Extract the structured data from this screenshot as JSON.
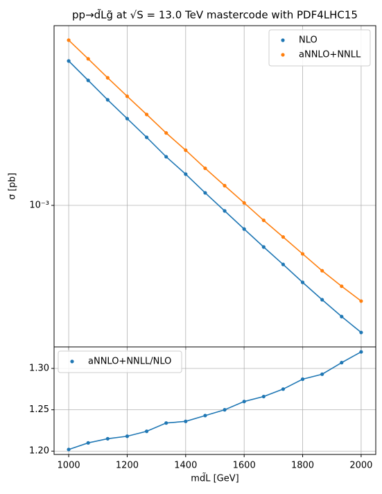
{
  "chart_data": [
    {
      "type": "line",
      "title": "pp→d̃Lg̃ at √S = 13.0 TeV mastercode with PDF4LHC15",
      "ylabel": "σ [pb]",
      "x": [
        1000,
        1066.67,
        1133.33,
        1200,
        1266.67,
        1333.33,
        1400,
        1466.67,
        1533.33,
        1600,
        1666.67,
        1733.33,
        1800,
        1866.67,
        1933.33,
        2000
      ],
      "series": [
        {
          "name": "NLO",
          "color": "#1f77b4",
          "values": [
            0.003586,
            0.00302,
            0.002543,
            0.002154,
            0.001825,
            0.001537,
            0.001318,
            0.001117,
            0.000952,
            0.000811,
            0.000692,
            0.000593,
            0.000506,
            0.000434,
            0.000374,
            0.000325
          ]
        },
        {
          "name": "aNNLO+NNLL",
          "color": "#ff7f0e",
          "values": [
            0.00431,
            0.003654,
            0.00309,
            0.002624,
            0.002234,
            0.001897,
            0.001629,
            0.001388,
            0.00119,
            0.001022,
            0.000876,
            0.000756,
            0.000651,
            0.000561,
            0.000489,
            0.000429
          ]
        }
      ],
      "xlim": [
        950,
        2050
      ],
      "xticks": [
        1000,
        1200,
        1400,
        1600,
        1800,
        2000
      ],
      "ylim": [
        0.000286,
        0.0049
      ],
      "yticks": [
        {
          "value": 0.001,
          "label": "10⁻³"
        }
      ],
      "log_y": true,
      "grid": true,
      "legend": "upper right"
    },
    {
      "type": "line",
      "xlabel": "md̃L [GeV]",
      "x": [
        1000,
        1066.67,
        1133.33,
        1200,
        1266.67,
        1333.33,
        1400,
        1466.67,
        1533.33,
        1600,
        1666.67,
        1733.33,
        1800,
        1866.67,
        1933.33,
        2000
      ],
      "series": [
        {
          "name": "aNNLO+NNLL/NLO",
          "color": "#1f77b4",
          "values": [
            1.202,
            1.21,
            1.215,
            1.218,
            1.224,
            1.234,
            1.236,
            1.243,
            1.25,
            1.26,
            1.266,
            1.275,
            1.287,
            1.293,
            1.307,
            1.32
          ]
        }
      ],
      "xlim": [
        950,
        2050
      ],
      "xticks": [
        1000,
        1200,
        1400,
        1600,
        1800,
        2000
      ],
      "ylim": [
        1.196,
        1.326
      ],
      "yticks": [
        1.2,
        1.25,
        1.3
      ],
      "log_y": false,
      "grid": true,
      "legend": "upper left"
    }
  ]
}
